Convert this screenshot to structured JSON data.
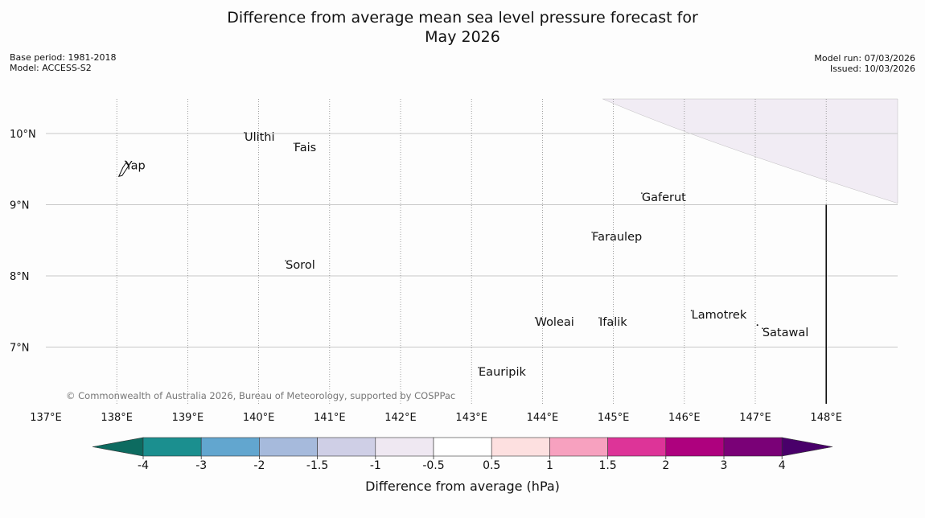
{
  "title_line1": "Difference from average mean sea level pressure forecast for",
  "title_line2": "May 2026",
  "meta_left": [
    "Base period: 1981-2018",
    "Model: ACCESS-S2"
  ],
  "meta_right": [
    "Model run: 07/03/2026",
    "Issued: 10/03/2026"
  ],
  "copyright": "© Commonwealth of Australia 2026, Bureau of Meteorology, supported by COSPPac",
  "map": {
    "lon_labels": [
      "137°E",
      "138°E",
      "139°E",
      "140°E",
      "141°E",
      "142°E",
      "143°E",
      "144°E",
      "145°E",
      "146°E",
      "147°E",
      "148°E"
    ],
    "lat_labels": [
      "10°N",
      "9°N",
      "8°N",
      "7°N"
    ],
    "lon_values": [
      137,
      138,
      139,
      140,
      141,
      142,
      143,
      144,
      145,
      146,
      147,
      148
    ],
    "lat_values": [
      10,
      9,
      8,
      7
    ],
    "places": [
      {
        "name": "Ulithi",
        "lon": 139.8,
        "lat": 9.9
      },
      {
        "name": "Fais",
        "lon": 140.5,
        "lat": 9.75
      },
      {
        "name": "Yap",
        "lon": 138.12,
        "lat": 9.5
      },
      {
        "name": "Gaferut",
        "lon": 145.4,
        "lat": 9.05
      },
      {
        "name": "Faraulep",
        "lon": 144.7,
        "lat": 8.5
      },
      {
        "name": "Sorol",
        "lon": 140.38,
        "lat": 8.1
      },
      {
        "name": "Lamotrek",
        "lon": 146.1,
        "lat": 7.4
      },
      {
        "name": "Woleai",
        "lon": 143.9,
        "lat": 7.3
      },
      {
        "name": "Ifalik",
        "lon": 144.8,
        "lat": 7.3
      },
      {
        "name": "Satawal",
        "lon": 147.1,
        "lat": 7.15
      },
      {
        "name": "Eauripik",
        "lon": 143.1,
        "lat": 6.6
      }
    ]
  },
  "colorbar": {
    "label": "Difference from average (hPa)",
    "ticks": [
      "-4",
      "-3",
      "-2",
      "-1.5",
      "-1",
      "-0.5",
      "0.5",
      "1",
      "1.5",
      "2",
      "3",
      "4"
    ],
    "colors": [
      "#1b8f8f",
      "#62a6cf",
      "#a6badc",
      "#cfcfe6",
      "#efe8f2",
      "#ffffff",
      "#fde0e0",
      "#f7a1bf",
      "#dd3498",
      "#ae017e",
      "#7a0177"
    ],
    "under_color": "#0d6b60",
    "over_color": "#49006a",
    "anomaly_region_color": "#f1ecf4"
  }
}
